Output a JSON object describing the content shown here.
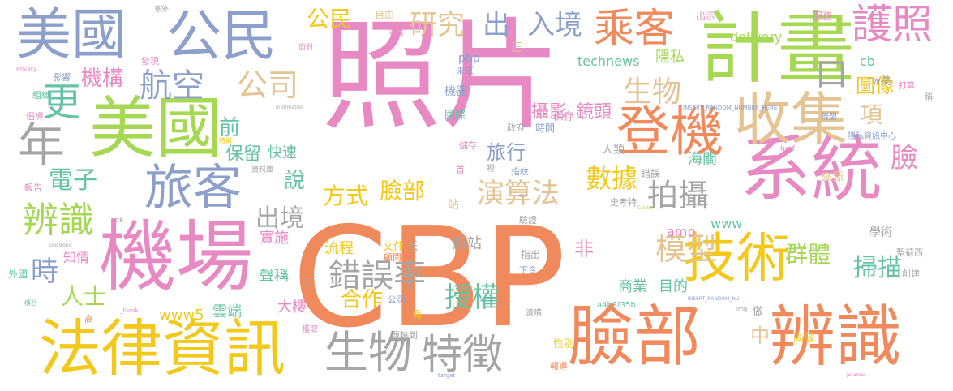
{
  "palette": {
    "orange": "#f08a5d",
    "pink": "#e78ac3",
    "blue": "#8da0cb",
    "green": "#a6d854",
    "yellow": "#f2c81a",
    "tan": "#e5c494",
    "gray": "#a5a5a5",
    "teal": "#66c2a5"
  },
  "words": [
    {
      "text": "CBP",
      "color": "orange"
    },
    {
      "text": "照片",
      "color": "pink"
    },
    {
      "text": "系統",
      "color": "pink"
    },
    {
      "text": "計畫",
      "color": "green"
    },
    {
      "text": "機場",
      "color": "pink"
    },
    {
      "text": "美國",
      "color": "blue"
    },
    {
      "text": "公民",
      "color": "blue"
    },
    {
      "text": "美國",
      "color": "green"
    },
    {
      "text": "法律資訊",
      "color": "yellow"
    },
    {
      "text": "臉部",
      "color": "orange"
    },
    {
      "text": "辨識",
      "color": "orange"
    },
    {
      "text": "收集",
      "color": "tan"
    },
    {
      "text": "登機",
      "color": "orange"
    },
    {
      "text": "技術",
      "color": "yellow"
    },
    {
      "text": "旅客",
      "color": "blue"
    },
    {
      "text": "護照",
      "color": "pink"
    },
    {
      "text": "乘客",
      "color": "orange"
    },
    {
      "text": "生物",
      "color": "gray"
    },
    {
      "text": "特徵",
      "color": "gray"
    },
    {
      "text": "錯誤率",
      "color": "gray"
    },
    {
      "text": "辨識",
      "color": "green"
    },
    {
      "text": "年",
      "color": "gray"
    },
    {
      "text": "航空",
      "color": "blue"
    },
    {
      "text": "公司",
      "color": "tan"
    },
    {
      "text": "更",
      "color": "teal"
    },
    {
      "text": "機構",
      "color": "pink"
    },
    {
      "text": "研究",
      "color": "tan"
    },
    {
      "text": "出",
      "color": "blue"
    },
    {
      "text": "入境",
      "color": "blue"
    },
    {
      "text": "公民",
      "color": "yellow"
    },
    {
      "text": "生物",
      "color": "tan"
    },
    {
      "text": "攝影",
      "color": "pink"
    },
    {
      "text": "鏡頭",
      "color": "pink"
    },
    {
      "text": "圖像",
      "color": "yellow"
    },
    {
      "text": "項",
      "color": "tan"
    },
    {
      "text": "口",
      "color": "gray"
    },
    {
      "text": "臉",
      "color": "pink"
    },
    {
      "text": "數據",
      "color": "yellow"
    },
    {
      "text": "拍攝",
      "color": "gray"
    },
    {
      "text": "旅行",
      "color": "blue"
    },
    {
      "text": "演算法",
      "color": "tan"
    },
    {
      "text": "臉部",
      "color": "yellow"
    },
    {
      "text": "方式",
      "color": "yellow"
    },
    {
      "text": "模型",
      "color": "tan"
    },
    {
      "text": "群體",
      "color": "green"
    },
    {
      "text": "掃描",
      "color": "teal"
    },
    {
      "text": "授權",
      "color": "teal"
    },
    {
      "text": "合作",
      "color": "yellow"
    },
    {
      "text": "出境",
      "color": "gray"
    },
    {
      "text": "說",
      "color": "teal"
    },
    {
      "text": "保留",
      "color": "teal"
    },
    {
      "text": "前",
      "color": "teal"
    },
    {
      "text": "電子",
      "color": "teal"
    },
    {
      "text": "時",
      "color": "blue"
    },
    {
      "text": "人士",
      "color": "green"
    },
    {
      "text": "中",
      "color": "tan"
    },
    {
      "text": "非",
      "color": "pink"
    },
    {
      "text": "隱私",
      "color": "green"
    },
    {
      "text": "海關",
      "color": "teal"
    },
    {
      "text": "快速",
      "color": "teal"
    },
    {
      "text": "實施",
      "color": "pink"
    },
    {
      "text": "聲稱",
      "color": "teal"
    },
    {
      "text": "大樓",
      "color": "pink"
    },
    {
      "text": "雲端",
      "color": "teal"
    },
    {
      "text": "商業",
      "color": "teal"
    },
    {
      "text": "目的",
      "color": "teal"
    },
    {
      "text": "流程",
      "color": "yellow"
    },
    {
      "text": "航站",
      "color": "gray"
    },
    {
      "text": "知情",
      "color": "pink"
    },
    {
      "text": "www5",
      "color": "yellow"
    },
    {
      "text": "www",
      "color": "teal"
    },
    {
      "text": "amp",
      "color": "pink"
    },
    {
      "text": "delivery",
      "color": "green"
    },
    {
      "text": "technews",
      "color": "teal"
    },
    {
      "text": "php",
      "color": "blue"
    },
    {
      "text": "cb",
      "color": "teal"
    },
    {
      "text": "tw美",
      "color": "gray"
    },
    {
      "text": "機器",
      "color": "blue"
    },
    {
      "text": "國際",
      "color": "teal"
    },
    {
      "text": "保存",
      "color": "pink"
    },
    {
      "text": "政府",
      "color": "gray"
    },
    {
      "text": "時間",
      "color": "blue"
    },
    {
      "text": "人類",
      "color": "gray"
    },
    {
      "text": "出示",
      "color": "pink"
    },
    {
      "text": "自由",
      "color": "tan"
    },
    {
      "text": "服務",
      "color": "pink"
    },
    {
      "text": "正",
      "color": "tan"
    },
    {
      "text": "未來",
      "color": "blue"
    },
    {
      "text": "錯誤",
      "color": "gray"
    },
    {
      "text": "來源",
      "color": "tan"
    },
    {
      "text": "學術",
      "color": "gray"
    },
    {
      "text": "聖荷西",
      "color": "gray"
    },
    {
      "text": "文件",
      "color": "yellow"
    },
    {
      "text": "低",
      "color": "gray"
    },
    {
      "text": "顧問",
      "color": "orange"
    },
    {
      "text": "指出",
      "color": "gray"
    },
    {
      "text": "下令",
      "color": "blue"
    },
    {
      "text": "公司",
      "color": "blue"
    },
    {
      "text": "需",
      "color": "yellow"
    },
    {
      "text": "傳輸到",
      "color": "gray"
    },
    {
      "text": "性別",
      "color": "yellow"
    },
    {
      "text": "報導",
      "color": "orange"
    },
    {
      "text": "高級",
      "color": "yellow"
    },
    {
      "text": "創建",
      "color": "gray"
    },
    {
      "text": "做",
      "color": "gray"
    },
    {
      "text": "遺嘴",
      "color": "gray"
    },
    {
      "text": "a4b3f35b",
      "color": "teal"
    },
    {
      "text": "外國",
      "color": "teal"
    },
    {
      "text": "報告",
      "color": "pink"
    },
    {
      "text": "倡導",
      "color": "pink"
    },
    {
      "text": "組織",
      "color": "teal"
    },
    {
      "text": "影響",
      "color": "blue"
    },
    {
      "text": "發現",
      "color": "pink"
    },
    {
      "text": "意外",
      "color": "gray"
    },
    {
      "text": "存有",
      "color": "pink"
    },
    {
      "text": "面對",
      "color": "pink"
    },
    {
      "text": "儲存",
      "color": "pink"
    },
    {
      "text": "指紋",
      "color": "blue"
    },
    {
      "text": "首",
      "color": "pink"
    },
    {
      "text": "裡",
      "color": "gray"
    },
    {
      "text": "站",
      "color": "tan"
    },
    {
      "text": "驗證",
      "color": "gray"
    },
    {
      "text": "史考特",
      "color": "gray"
    },
    {
      "text": "隱私資訊中心",
      "color": "blue"
    },
    {
      "text": "聯盟",
      "color": "blue"
    },
    {
      "text": "稱",
      "color": "gray"
    },
    {
      "text": "打算",
      "color": "pink"
    },
    {
      "text": "高",
      "color": "orange"
    },
    {
      "text": "天",
      "color": "gray"
    },
    {
      "text": "獲取",
      "color": "pink"
    },
    {
      "text": "Information",
      "color": "gray"
    },
    {
      "text": "INSERT_RANDOM_NUMBER_HERE",
      "color": "blue"
    },
    {
      "text": "INSERT_RANDOM_NU",
      "color": "blue"
    },
    {
      "text": "href",
      "color": "pink"
    },
    {
      "text": "ck",
      "color": "gray"
    },
    {
      "text": "Electronic",
      "color": "gray"
    },
    {
      "text": "Center",
      "color": "green"
    },
    {
      "text": "target",
      "color": "blue"
    },
    {
      "text": "img",
      "color": "gray"
    },
    {
      "text": "src",
      "color": "gray"
    },
    {
      "text": "_blank",
      "color": "pink"
    },
    {
      "text": "Jeramie",
      "color": "pink"
    },
    {
      "text": "資料庫",
      "color": "gray"
    },
    {
      "text": "特徵",
      "color": "yellow"
    },
    {
      "text": "Privacy",
      "color": "pink"
    },
    {
      "text": "櫃台",
      "color": "teal"
    }
  ]
}
